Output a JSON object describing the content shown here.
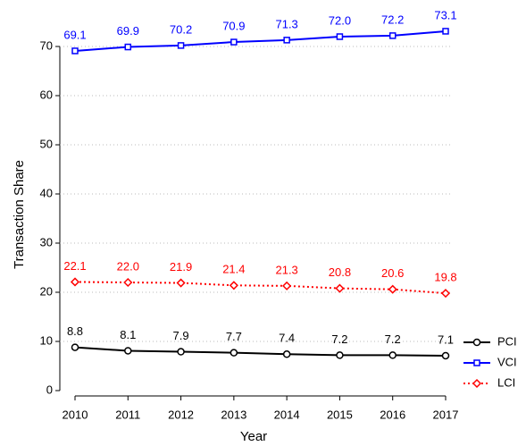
{
  "chart_data": {
    "type": "line",
    "x_label": "Year",
    "y_label": "Transaction Share",
    "x": [
      2010,
      2011,
      2012,
      2013,
      2014,
      2015,
      2016,
      2017
    ],
    "xlim": [
      2010,
      2017
    ],
    "xticks": [
      2010,
      2011,
      2012,
      2013,
      2014,
      2015,
      2016,
      2017
    ],
    "ylim": [
      0,
      75
    ],
    "yticks": [
      0,
      10,
      20,
      30,
      40,
      50,
      60,
      70
    ],
    "grid": true,
    "legend": "right",
    "series": [
      {
        "name": "PCI",
        "color": "#000000",
        "marker": "circle",
        "dash": "solid",
        "values": [
          8.8,
          8.1,
          7.9,
          7.7,
          7.4,
          7.2,
          7.2,
          7.1
        ],
        "value_labels": [
          "8.8",
          "8.1",
          "7.9",
          "7.7",
          "7.4",
          "7.2",
          "7.2",
          "7.1"
        ]
      },
      {
        "name": "VCI",
        "color": "#0000ff",
        "marker": "square",
        "dash": "solid",
        "values": [
          69.1,
          69.9,
          70.2,
          70.9,
          71.3,
          72,
          72.2,
          73.1
        ],
        "value_labels": [
          "69.1",
          "69.9",
          "70.2",
          "70.9",
          "71.3",
          "72.0",
          "72.2",
          "73.1"
        ]
      },
      {
        "name": "LCI",
        "color": "#ff0000",
        "marker": "diamond",
        "dash": "dotted",
        "values": [
          22.1,
          22,
          21.9,
          21.4,
          21.3,
          20.8,
          20.6,
          19.8
        ],
        "value_labels": [
          "22.1",
          "22.0",
          "21.9",
          "21.4",
          "21.3",
          "20.8",
          "20.6",
          "19.8"
        ]
      }
    ]
  }
}
